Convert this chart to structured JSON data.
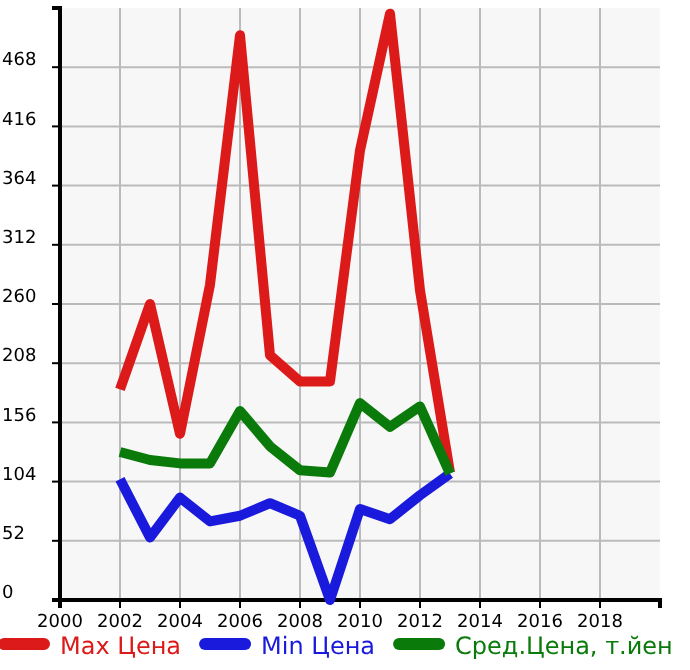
{
  "chart_data": {
    "type": "line",
    "x": [
      2002,
      2003,
      2004,
      2005,
      2006,
      2007,
      2008,
      2009,
      2010,
      2011,
      2012,
      2013
    ],
    "series": [
      {
        "name": "Max Цена",
        "color": "#dd1a1a",
        "values": [
          185,
          260,
          146,
          277,
          496,
          215,
          192,
          192,
          395,
          515,
          272,
          112
        ]
      },
      {
        "name": "Min Цена",
        "color": "#1a1add",
        "values": [
          106,
          55,
          90,
          69,
          74,
          85,
          74,
          0,
          80,
          71,
          92,
          111
        ]
      },
      {
        "name": "Сред.Цена, т.йен",
        "color": "#0a7a0a",
        "values": [
          130,
          123,
          120,
          120,
          166,
          135,
          114,
          112,
          173,
          152,
          170,
          111
        ]
      }
    ],
    "xlim": [
      2000,
      2020
    ],
    "xticks": [
      2000,
      2002,
      2004,
      2006,
      2008,
      2010,
      2012,
      2014,
      2016,
      2018
    ],
    "ylim": [
      0,
      520
    ],
    "yticks": [
      0,
      52,
      104,
      156,
      208,
      260,
      312,
      364,
      416,
      468
    ],
    "grid": true,
    "legend": "bottom",
    "marker": "none",
    "line_style": "solid"
  }
}
